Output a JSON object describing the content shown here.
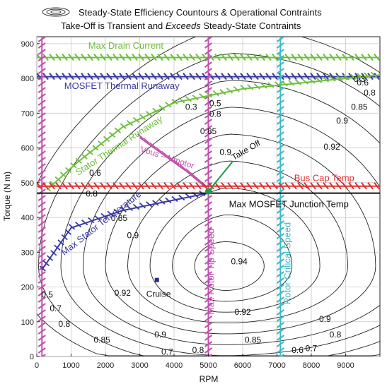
{
  "chart_data": {
    "type": "line",
    "title": "Steady-State Efficiency Countours & Operational Contraints",
    "subtitle": "Take-Off is Transient and Exceeds Steady-State Contraints",
    "xlabel": "RPM",
    "ylabel": "Torque (N m)",
    "xlim": [
      0,
      10000
    ],
    "ylim": [
      0,
      920
    ],
    "xticks": [
      0,
      1000,
      2000,
      3000,
      4000,
      5000,
      6000,
      7000,
      8000,
      9000
    ],
    "yticks": [
      0,
      100,
      200,
      300,
      400,
      500,
      600,
      700,
      800,
      900
    ],
    "grid": true,
    "legend": "top",
    "colors": {
      "drain": "#6cbf3a",
      "thermal": "#3a3aa0",
      "bus": "#e03030",
      "junction": "#111111",
      "rotor_tip": "#c050b0",
      "rotor_critical": "#40b8c8",
      "vbus": "#c050b0",
      "takeoff": "#1a9a4a",
      "contour": "#222222",
      "cruise": "#2a2a80"
    },
    "constraints": {
      "drain_current": {
        "label": "Max Drain Current",
        "torque": 860
      },
      "mosfet_thermal": {
        "label": "MOSFET Thermal Runaway",
        "torque": 805
      },
      "bus_cap": {
        "label": "Bus Cap Temp",
        "torque": 490
      },
      "junction": {
        "label": "Max MOSFET Junction Temp",
        "torque": 470
      },
      "rotor_tip": {
        "label": "Max Rotor Tip Speed",
        "rpm": 5000
      },
      "rotor_critical": {
        "label": "Rotor Critical Speed",
        "rpm": 7100
      },
      "low_rpm": {
        "rpm": 150
      },
      "stator_thermal": {
        "label": "Stator Thermal Runaway",
        "points": [
          [
            300,
            480
          ],
          [
            1200,
            560
          ],
          [
            2500,
            660
          ],
          [
            4000,
            730
          ],
          [
            6000,
            770
          ],
          [
            8000,
            790
          ],
          [
            10000,
            810
          ]
        ]
      },
      "stator_temp": {
        "label": "Max Stator Temperature",
        "points": [
          [
            150,
            250
          ],
          [
            1000,
            370
          ],
          [
            2500,
            420
          ],
          [
            4000,
            450
          ],
          [
            5000,
            470
          ]
        ]
      },
      "vbus": {
        "label": "Vbus – Vmotor",
        "points": [
          [
            3000,
            630
          ],
          [
            3700,
            580
          ],
          [
            4400,
            530
          ],
          [
            5000,
            480
          ]
        ]
      }
    },
    "takeoff": {
      "label": "Take Off",
      "rpm": 5000,
      "torque": 475,
      "to": [
        5700,
        560
      ]
    },
    "cruise": {
      "label": "Cruise",
      "rpm": 3500,
      "torque": 220
    },
    "efficiency_levels": [
      0.3,
      0.5,
      0.6,
      0.7,
      0.8,
      0.85,
      0.9,
      0.92,
      0.94
    ],
    "contour_labels": [
      {
        "text": "0.3",
        "rpm": 4500,
        "torque": 710
      },
      {
        "text": "0.5",
        "rpm": 5200,
        "torque": 720
      },
      {
        "text": "0.8",
        "rpm": 5200,
        "torque": 690
      },
      {
        "text": "0.85",
        "rpm": 5000,
        "torque": 640
      },
      {
        "text": "0.9",
        "rpm": 5500,
        "torque": 580
      },
      {
        "text": "0.6",
        "rpm": 1700,
        "torque": 520
      },
      {
        "text": "0.8",
        "rpm": 1600,
        "torque": 460
      },
      {
        "text": "0.85",
        "rpm": 2400,
        "torque": 390
      },
      {
        "text": "0.9",
        "rpm": 2800,
        "torque": 340
      },
      {
        "text": "0.92",
        "rpm": 2500,
        "torque": 175
      },
      {
        "text": "0.94",
        "rpm": 5900,
        "torque": 265
      },
      {
        "text": "0.92",
        "rpm": 6000,
        "torque": 120
      },
      {
        "text": "0.9",
        "rpm": 3600,
        "torque": 55
      },
      {
        "text": "0.85",
        "rpm": 1900,
        "torque": 40
      },
      {
        "text": "0.8",
        "rpm": 800,
        "torque": 85
      },
      {
        "text": "0.7",
        "rpm": 550,
        "torque": 130
      },
      {
        "text": "0.5",
        "rpm": 300,
        "torque": 170
      },
      {
        "text": "0.7",
        "rpm": 3800,
        "torque": 5
      },
      {
        "text": "0.8",
        "rpm": 4700,
        "torque": 10
      },
      {
        "text": "0.85",
        "rpm": 6300,
        "torque": 40
      },
      {
        "text": "0.6",
        "rpm": 7600,
        "torque": 10
      },
      {
        "text": "0.7",
        "rpm": 8000,
        "torque": 15
      },
      {
        "text": "0.8",
        "rpm": 8700,
        "torque": 55
      },
      {
        "text": "0.9",
        "rpm": 8400,
        "torque": 100
      },
      {
        "text": "0.92",
        "rpm": 8600,
        "torque": 595
      },
      {
        "text": "0.9",
        "rpm": 8900,
        "torque": 670
      },
      {
        "text": "0.85",
        "rpm": 9400,
        "torque": 710
      },
      {
        "text": "0.8",
        "rpm": 9700,
        "torque": 750
      },
      {
        "text": "0.6",
        "rpm": 9500,
        "torque": 780
      },
      {
        "text": "0.3",
        "rpm": 9400,
        "torque": 790
      }
    ]
  }
}
